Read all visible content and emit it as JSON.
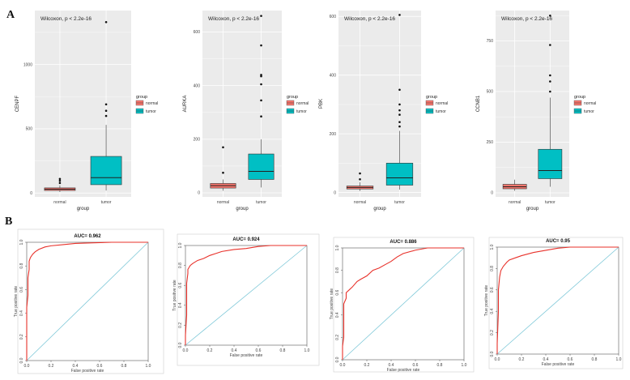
{
  "panels": [
    {
      "letter": "A"
    },
    {
      "letter": "B"
    }
  ],
  "colors": {
    "normal": "#F8766D",
    "tumor": "#00BFC4",
    "panel_bg": "#EBEBEB",
    "grid": "#FFFFFF",
    "roc_line": "#E8312A",
    "diagonal": "#7EC8D8"
  },
  "chart_data": [
    {
      "type": "box",
      "title": "Wilcoxon, p < 2.2e-16",
      "xlabel": "group",
      "ylabel": "CENPF",
      "categories": [
        "normal",
        "tumor"
      ],
      "ylim": [
        -30,
        1420
      ],
      "yticks": [
        0,
        500,
        1000
      ],
      "ytick_labels": [
        "0",
        "500",
        "1000"
      ],
      "legend": {
        "title": "group",
        "items": [
          "normal",
          "tumor"
        ]
      },
      "boxes": [
        {
          "group": "normal",
          "low": 8,
          "q1": 20,
          "median": 30,
          "q3": 40,
          "high": 60,
          "outliers": [
            78,
            95,
            110
          ]
        },
        {
          "group": "tumor",
          "low": 20,
          "q1": 65,
          "median": 120,
          "q3": 285,
          "high": 530,
          "outliers": [
            600,
            640,
            690,
            1330
          ]
        }
      ]
    },
    {
      "type": "box",
      "title": "Wilcoxon, p < 2.2e-16",
      "xlabel": "group",
      "ylabel": "AURKA",
      "categories": [
        "normal",
        "tumor"
      ],
      "ylim": [
        -15,
        680
      ],
      "yticks": [
        0,
        200,
        400,
        600
      ],
      "ytick_labels": [
        "0",
        "200",
        "400",
        "600"
      ],
      "legend": {
        "title": "group",
        "items": [
          "normal",
          "tumor"
        ]
      },
      "boxes": [
        {
          "group": "normal",
          "low": 8,
          "q1": 18,
          "median": 27,
          "q3": 35,
          "high": 50,
          "outliers": [
            75,
            170
          ]
        },
        {
          "group": "tumor",
          "low": 20,
          "q1": 50,
          "median": 80,
          "q3": 145,
          "high": 200,
          "outliers": [
            285,
            345,
            405,
            435,
            440,
            550,
            660
          ]
        }
      ]
    },
    {
      "type": "box",
      "title": "Wilcoxon, p < 2.2e-16",
      "xlabel": "group",
      "ylabel": "PBK",
      "categories": [
        "normal",
        "tumor"
      ],
      "ylim": [
        -15,
        620
      ],
      "yticks": [
        0,
        200,
        400,
        600
      ],
      "ytick_labels": [
        "0",
        "200",
        "400",
        "600"
      ],
      "legend": {
        "title": "group",
        "items": [
          "normal",
          "tumor"
        ]
      },
      "boxes": [
        {
          "group": "normal",
          "low": 5,
          "q1": 12,
          "median": 17,
          "q3": 22,
          "high": 35,
          "outliers": [
            45,
            65
          ]
        },
        {
          "group": "tumor",
          "low": 10,
          "q1": 25,
          "median": 50,
          "q3": 100,
          "high": 210,
          "outliers": [
            225,
            240,
            265,
            280,
            300,
            350,
            605
          ]
        }
      ]
    },
    {
      "type": "box",
      "title": "Wilcoxon, p < 2.2e-16",
      "xlabel": "group",
      "ylabel": "CCNB1",
      "categories": [
        "normal",
        "tumor"
      ],
      "ylim": [
        -20,
        900
      ],
      "yticks": [
        0,
        250,
        500,
        750
      ],
      "ytick_labels": [
        "0",
        "250",
        "500",
        "750"
      ],
      "legend": {
        "title": "group",
        "items": [
          "normal",
          "tumor"
        ]
      },
      "boxes": [
        {
          "group": "normal",
          "low": 10,
          "q1": 20,
          "median": 30,
          "q3": 42,
          "high": 65,
          "outliers": []
        },
        {
          "group": "tumor",
          "low": 30,
          "q1": 70,
          "median": 110,
          "q3": 215,
          "high": 470,
          "outliers": [
            500,
            550,
            580,
            730,
            875
          ]
        }
      ]
    },
    {
      "type": "line",
      "title": "AUC= 0.962",
      "xlabel": "False positive rate",
      "ylabel": "True positive rate",
      "xlim": [
        0,
        1
      ],
      "ylim": [
        0,
        1
      ],
      "xticks": [
        0,
        0.2,
        0.4,
        0.6,
        0.8,
        1
      ],
      "xtick_labels": [
        "0.0",
        "0.2",
        "0.4",
        "0.6",
        "0.8",
        "1.0"
      ],
      "yticks": [
        0,
        0.2,
        0.4,
        0.6,
        0.8,
        1
      ],
      "ytick_labels": [
        "0.0",
        "0.2",
        "0.4",
        "0.6",
        "0.8",
        "1.0"
      ],
      "series": [
        {
          "name": "ROC",
          "x": [
            0,
            0,
            0.01,
            0.01,
            0.02,
            0.02,
            0.03,
            0.05,
            0.07,
            0.1,
            0.15,
            0.2,
            0.3,
            0.4,
            0.55,
            0.7,
            1
          ],
          "y": [
            0,
            0.45,
            0.55,
            0.7,
            0.77,
            0.84,
            0.87,
            0.9,
            0.92,
            0.94,
            0.96,
            0.97,
            0.98,
            0.99,
            0.995,
            1,
            1
          ]
        },
        {
          "name": "chance",
          "x": [
            0,
            1
          ],
          "y": [
            0,
            1
          ]
        }
      ]
    },
    {
      "type": "line",
      "title": "AUC= 0.924",
      "xlabel": "False positive rate",
      "ylabel": "True positive rate",
      "xlim": [
        0,
        1
      ],
      "ylim": [
        0,
        1
      ],
      "xticks": [
        0,
        0.2,
        0.4,
        0.6,
        0.8,
        1
      ],
      "xtick_labels": [
        "0.0",
        "0.2",
        "0.4",
        "0.6",
        "0.8",
        "1.0"
      ],
      "yticks": [
        0,
        0.2,
        0.4,
        0.6,
        0.8,
        1
      ],
      "ytick_labels": [
        "0.0",
        "0.2",
        "0.4",
        "0.6",
        "0.8",
        "1.0"
      ],
      "series": [
        {
          "name": "ROC",
          "x": [
            0,
            0,
            0.01,
            0.01,
            0.02,
            0.02,
            0.04,
            0.06,
            0.1,
            0.15,
            0.2,
            0.25,
            0.3,
            0.4,
            0.5,
            0.6,
            0.7,
            1
          ],
          "y": [
            0,
            0.1,
            0.3,
            0.62,
            0.72,
            0.76,
            0.8,
            0.82,
            0.85,
            0.87,
            0.9,
            0.92,
            0.94,
            0.96,
            0.97,
            0.99,
            1,
            1
          ]
        },
        {
          "name": "chance",
          "x": [
            0,
            1
          ],
          "y": [
            0,
            1
          ]
        }
      ]
    },
    {
      "type": "line",
      "title": "AUC= 0.886",
      "xlabel": "False positive rate",
      "ylabel": "True positive rate",
      "xlim": [
        0,
        1
      ],
      "ylim": [
        0,
        1
      ],
      "xticks": [
        0,
        0.2,
        0.4,
        0.6,
        0.8,
        1
      ],
      "xtick_labels": [
        "0.0",
        "0.2",
        "0.4",
        "0.6",
        "0.8",
        "1.0"
      ],
      "yticks": [
        0,
        0.2,
        0.4,
        0.6,
        0.8,
        1
      ],
      "ytick_labels": [
        "0.0",
        "0.2",
        "0.4",
        "0.6",
        "0.8",
        "1.0"
      ],
      "series": [
        {
          "name": "ROC",
          "x": [
            0,
            0,
            0.01,
            0.01,
            0.03,
            0.03,
            0.06,
            0.08,
            0.12,
            0.15,
            0.2,
            0.25,
            0.3,
            0.35,
            0.4,
            0.45,
            0.5,
            0.6,
            0.7,
            1
          ],
          "y": [
            0,
            0.12,
            0.2,
            0.5,
            0.55,
            0.6,
            0.63,
            0.65,
            0.7,
            0.72,
            0.75,
            0.8,
            0.82,
            0.85,
            0.88,
            0.92,
            0.95,
            0.98,
            1,
            1
          ]
        },
        {
          "name": "chance",
          "x": [
            0,
            1
          ],
          "y": [
            0,
            1
          ]
        }
      ]
    },
    {
      "type": "line",
      "title": "AUC= 0.95",
      "xlabel": "False positive rate",
      "ylabel": "True positive rate",
      "xlim": [
        0,
        1
      ],
      "ylim": [
        0,
        1
      ],
      "xticks": [
        0,
        0.2,
        0.4,
        0.6,
        0.8,
        1
      ],
      "xtick_labels": [
        "0.0",
        "0.2",
        "0.4",
        "0.6",
        "0.8",
        "1.0"
      ],
      "yticks": [
        0,
        0.2,
        0.4,
        0.6,
        0.8,
        1
      ],
      "ytick_labels": [
        "0.0",
        "0.2",
        "0.4",
        "0.6",
        "0.8",
        "1.0"
      ],
      "series": [
        {
          "name": "ROC",
          "x": [
            0,
            0,
            0.01,
            0.01,
            0.02,
            0.03,
            0.05,
            0.08,
            0.1,
            0.15,
            0.2,
            0.3,
            0.4,
            0.5,
            0.6,
            1
          ],
          "y": [
            0,
            0.1,
            0.4,
            0.6,
            0.72,
            0.78,
            0.82,
            0.86,
            0.88,
            0.9,
            0.92,
            0.95,
            0.97,
            0.99,
            1,
            1
          ]
        },
        {
          "name": "chance",
          "x": [
            0,
            1
          ],
          "y": [
            0,
            1
          ]
        }
      ]
    }
  ]
}
